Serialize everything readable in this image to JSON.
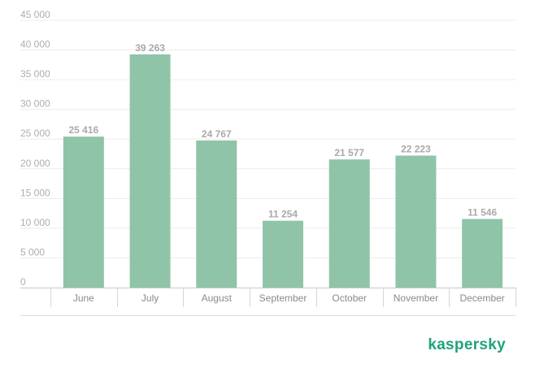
{
  "brand": {
    "name": "kaspersky",
    "color": "#1fa37c"
  },
  "chart_data": {
    "type": "bar",
    "title": "",
    "xlabel": "",
    "ylabel": "",
    "categories": [
      "June",
      "July",
      "August",
      "September",
      "October",
      "November",
      "December"
    ],
    "values": [
      25416,
      39263,
      24767,
      11254,
      21577,
      22223,
      11546
    ],
    "value_labels": [
      "25 416",
      "39 263",
      "24 767",
      "11 254",
      "21 577",
      "22 223",
      "11 546"
    ],
    "ylim": [
      0,
      45000
    ],
    "yticks": [
      0,
      5000,
      10000,
      15000,
      20000,
      25000,
      30000,
      35000,
      40000,
      45000
    ],
    "ytick_labels": [
      "0",
      "5 000",
      "10 000",
      "15 000",
      "20 000",
      "25 000",
      "30 000",
      "35 000",
      "40 000",
      "45 000"
    ],
    "grid": true,
    "legend": "none",
    "bar_color": "#8fc4a8"
  }
}
